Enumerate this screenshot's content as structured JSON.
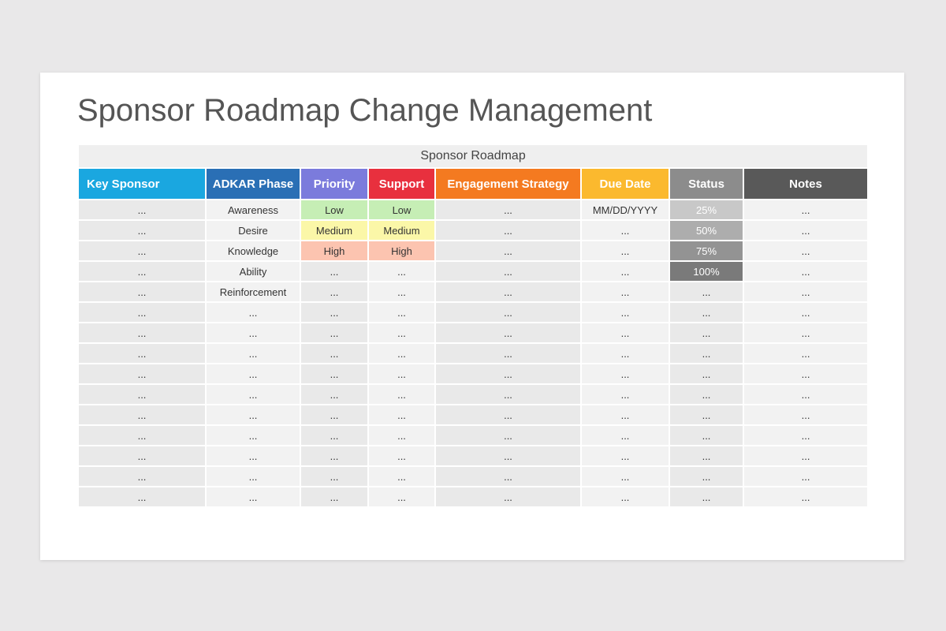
{
  "title": "Sponsor Roadmap Change Management",
  "table": {
    "caption": "Sponsor Roadmap",
    "headers": [
      "Key Sponsor",
      "ADKAR Phase",
      "Priority",
      "Support",
      "Engagement Strategy",
      "Due Date",
      "Status",
      "Notes"
    ],
    "rows": [
      [
        "...",
        "Awareness",
        "Low",
        "Low",
        "...",
        "MM/DD/YYYY",
        "25%",
        "..."
      ],
      [
        "...",
        "Desire",
        "Medium",
        "Medium",
        "...",
        "...",
        "50%",
        "..."
      ],
      [
        "...",
        "Knowledge",
        "High",
        "High",
        "...",
        "...",
        "75%",
        "..."
      ],
      [
        "...",
        "Ability",
        "...",
        "...",
        "...",
        "...",
        "100%",
        "..."
      ],
      [
        "...",
        "Reinforcement",
        "...",
        "...",
        "...",
        "...",
        "...",
        "..."
      ],
      [
        "...",
        "...",
        "...",
        "...",
        "...",
        "...",
        "...",
        "..."
      ],
      [
        "...",
        "...",
        "...",
        "...",
        "...",
        "...",
        "...",
        "..."
      ],
      [
        "...",
        "...",
        "...",
        "...",
        "...",
        "...",
        "...",
        "..."
      ],
      [
        "...",
        "...",
        "...",
        "...",
        "...",
        "...",
        "...",
        "..."
      ],
      [
        "...",
        "...",
        "...",
        "...",
        "...",
        "...",
        "...",
        "..."
      ],
      [
        "...",
        "...",
        "...",
        "...",
        "...",
        "...",
        "...",
        "..."
      ],
      [
        "...",
        "...",
        "...",
        "...",
        "...",
        "...",
        "...",
        "..."
      ],
      [
        "...",
        "...",
        "...",
        "...",
        "...",
        "...",
        "...",
        "..."
      ],
      [
        "...",
        "...",
        "...",
        "...",
        "...",
        "...",
        "...",
        "..."
      ],
      [
        "...",
        "...",
        "...",
        "...",
        "...",
        "...",
        "...",
        "..."
      ]
    ]
  }
}
